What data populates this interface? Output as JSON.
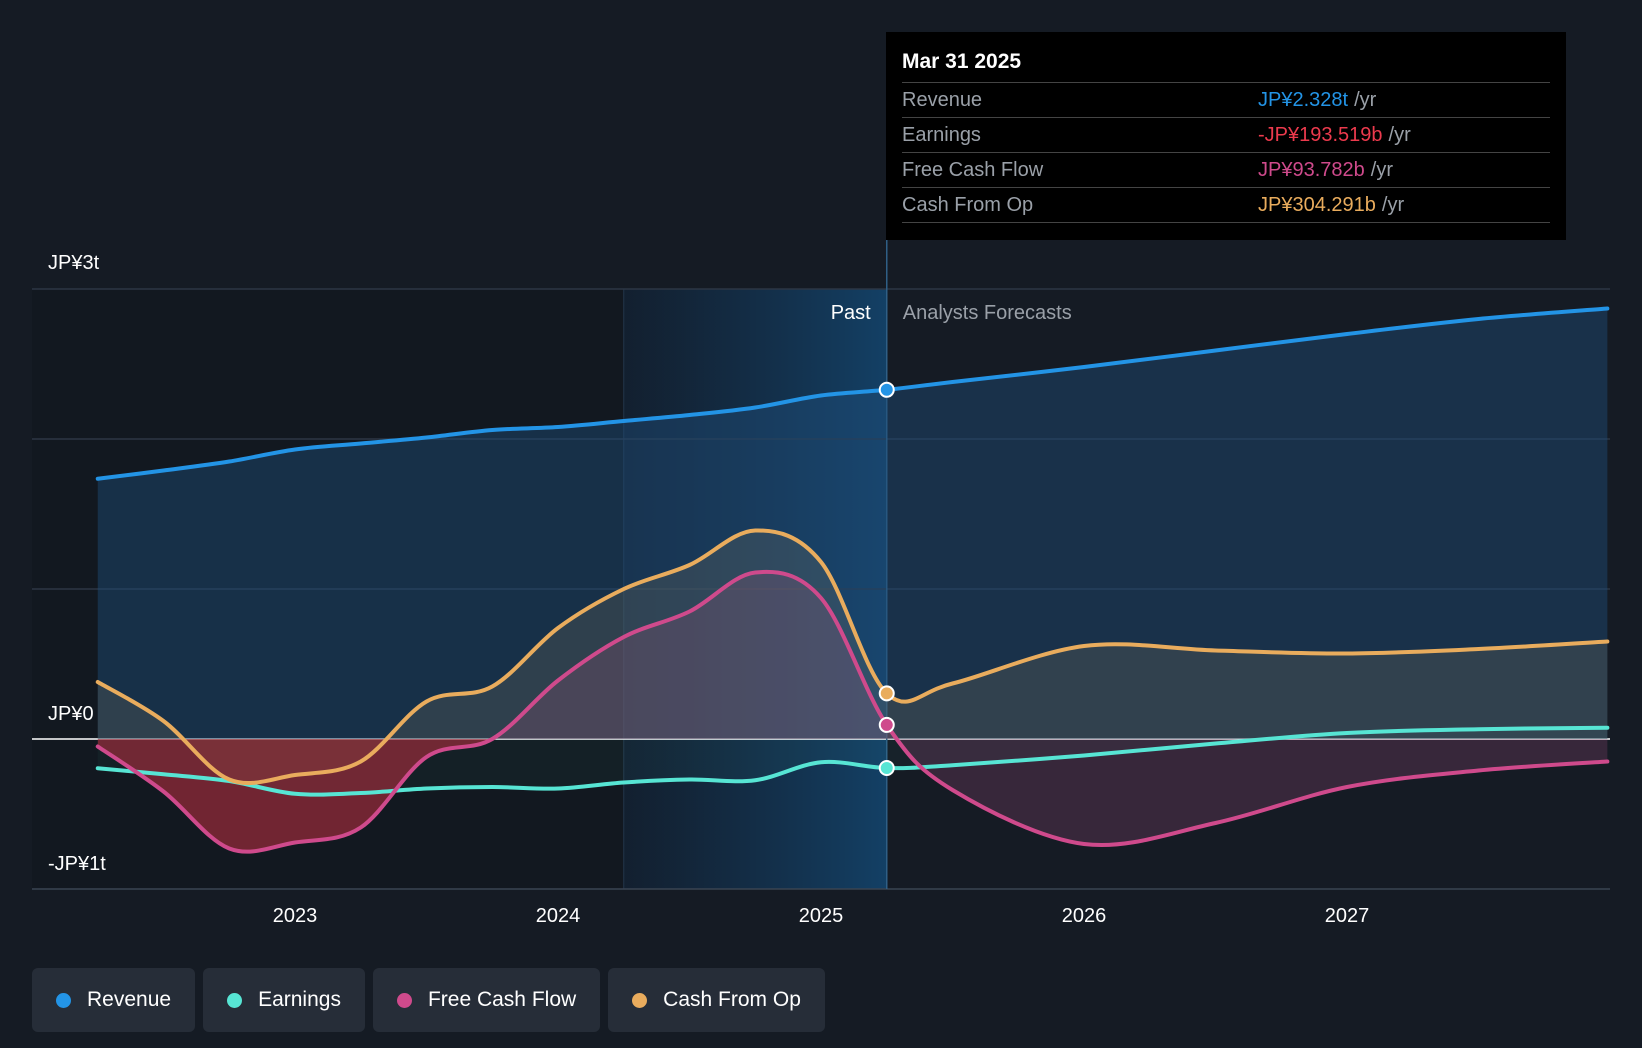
{
  "chart_data": {
    "type": "line",
    "y_axis_labels": [
      {
        "label": "JP¥3t",
        "value": 3000
      },
      {
        "label": "JP¥0",
        "value": 0
      },
      {
        "label": "-JP¥1t",
        "value": -1000
      }
    ],
    "ylim": [
      -1000,
      3000
    ],
    "xlim": [
      2022.25,
      2027.99
    ],
    "x_ticks": [
      {
        "label": "2023",
        "value": 2023
      },
      {
        "label": "2024",
        "value": 2024
      },
      {
        "label": "2025",
        "value": 2025
      },
      {
        "label": "2026",
        "value": 2026
      },
      {
        "label": "2027",
        "value": 2027
      }
    ],
    "past_label": "Past",
    "forecast_label": "Analysts Forecasts",
    "divider_x": 2025.25,
    "highlight_start_x": 2024.25,
    "grid": true,
    "series": [
      {
        "name": "Revenue",
        "color": "#2394e6",
        "x": [
          2022.25,
          2022.5,
          2022.75,
          2023,
          2023.25,
          2023.5,
          2023.75,
          2024,
          2024.25,
          2024.5,
          2024.75,
          2025,
          2025.25,
          2025.5,
          2026,
          2026.5,
          2027,
          2027.5,
          2027.99
        ],
        "y": [
          1735,
          1790,
          1850,
          1930,
          1970,
          2010,
          2060,
          2080,
          2120,
          2160,
          2210,
          2290,
          2328,
          2380,
          2480,
          2590,
          2700,
          2800,
          2870
        ]
      },
      {
        "name": "Earnings",
        "color": "#57e5d4",
        "x": [
          2022.25,
          2022.5,
          2022.75,
          2023,
          2023.25,
          2023.5,
          2023.75,
          2024,
          2024.25,
          2024.5,
          2024.75,
          2025,
          2025.25,
          2025.5,
          2026,
          2026.5,
          2027,
          2027.5,
          2027.99
        ],
        "y": [
          -195,
          -235,
          -280,
          -365,
          -360,
          -330,
          -320,
          -330,
          -290,
          -270,
          -275,
          -155,
          -193.519,
          -175,
          -110,
          -30,
          40,
          65,
          75
        ]
      },
      {
        "name": "Free Cash Flow",
        "color": "#cf4a8c",
        "x": [
          2022.25,
          2022.5,
          2022.75,
          2023,
          2023.25,
          2023.5,
          2023.75,
          2024,
          2024.25,
          2024.5,
          2024.75,
          2025,
          2025.25,
          2025.5,
          2026,
          2026.5,
          2027,
          2027.5,
          2027.99
        ],
        "y": [
          -50,
          -350,
          -730,
          -690,
          -590,
          -120,
          0,
          390,
          680,
          850,
          1110,
          940,
          93.782,
          -340,
          -700,
          -560,
          -320,
          -210,
          -150
        ]
      },
      {
        "name": "Cash From Op",
        "color": "#e9ac5d",
        "x": [
          2022.25,
          2022.5,
          2022.75,
          2023,
          2023.25,
          2023.5,
          2023.75,
          2024,
          2024.25,
          2024.5,
          2024.75,
          2025,
          2025.25,
          2025.5,
          2026,
          2026.5,
          2027,
          2027.5,
          2027.99
        ],
        "y": [
          380,
          120,
          -270,
          -240,
          -150,
          250,
          350,
          740,
          1000,
          1160,
          1390,
          1180,
          304.291,
          370,
          620,
          590,
          570,
          600,
          650
        ]
      }
    ],
    "tooltip": {
      "date": "Mar 31 2025",
      "unit": "/yr",
      "rows": [
        {
          "label": "Revenue",
          "value": "JP¥2.328t",
          "color": "#2394e6"
        },
        {
          "label": "Earnings",
          "value": "-JP¥193.519b",
          "color": "#ec3a4d"
        },
        {
          "label": "Free Cash Flow",
          "value": "JP¥93.782b",
          "color": "#cf4a8c"
        },
        {
          "label": "Cash From Op",
          "value": "JP¥304.291b",
          "color": "#e9ac5d"
        }
      ]
    }
  },
  "legend": [
    {
      "label": "Revenue",
      "color": "#2394e6"
    },
    {
      "label": "Earnings",
      "color": "#57e5d4"
    },
    {
      "label": "Free Cash Flow",
      "color": "#cf4a8c"
    },
    {
      "label": "Cash From Op",
      "color": "#e9ac5d"
    }
  ]
}
